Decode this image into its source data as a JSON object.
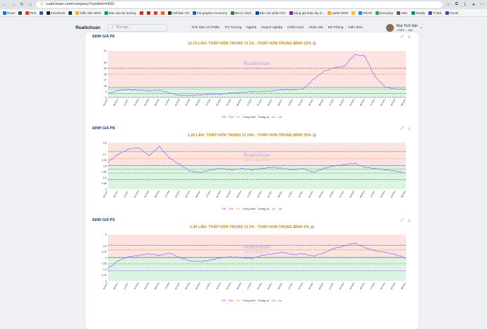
{
  "browser": {
    "url": "ruatichsan.com/company?symbol=HDG",
    "bookmarks": [
      "Read",
      "",
      "Pinh",
      "",
      "Facebook",
      "",
      "Diễn đàn NĐG",
      "Báo vào thị trường",
      "",
      "",
      "",
      "",
      "Vnfinlab VN",
      "VN-graphic-economy",
      "BCCL 2021",
      "Báo vào phân tích",
      "Sáng giá thép rây d...",
      "Jarfet MOS",
      "",
      "PEAN",
      "Everyday",
      "ABC",
      "Simply",
      "TCBS",
      "Travel"
    ]
  },
  "nav": {
    "logo": "Ruatichsan",
    "search_placeholder": "Tìm mã...",
    "menu": [
      "Tích Sản Cổ Phiếu",
      "Thị Trường",
      "Ngành",
      "Doanh nghiệp",
      "Chiến lược",
      "Khảo Sát",
      "Mô Phỏng",
      "Kiến thức"
    ],
    "user_name": "Rùa Tích Sản",
    "badge1": "FREE",
    "badge2": "EA"
  },
  "legend_labels": {
    "series": "PE",
    "p2": "+2σ",
    "p1": "+1σ",
    "avg": "Trung bình",
    "med": "Trung vị",
    "m1": "-1σ",
    "m2": "-2σ"
  },
  "watermark": {
    "main": "Ruatichsan",
    "sub": "Nguồn: ruatichsan.com"
  },
  "colors": {
    "pos2": "#d62728",
    "pos1": "#f08a24",
    "avg": "#444444",
    "med": "#666666",
    "neg1": "#2ca02c",
    "neg2": "#5b4bd6",
    "line": "#8b7cf0",
    "title": "#c98b0c"
  },
  "sections": [
    {
      "title": "ĐỊNH GIÁ PE",
      "headline": "12.72 LẦN: THẤP HƠN TRUNG VỊ 1% - THẤP HƠN TRUNG BÌNH 22%",
      "chart_data": {
        "type": "line",
        "yticks": [
          "0",
          "9",
          "18",
          "27",
          "36",
          "45",
          "54",
          "72"
        ],
        "ylim": [
          0,
          72
        ],
        "bands": {
          "pos2": 45,
          "pos1": 36,
          "avg": 16,
          "med": 13,
          "neg1": 6,
          "neg2": 0
        },
        "xlabels": [
          "05/2017",
          "08/2017",
          "11/2017",
          "02/2018",
          "05/2018",
          "08/2018",
          "11/2018",
          "02/2019",
          "05/2019",
          "08/2019",
          "11/2019",
          "02/2020",
          "05/2020",
          "08/2020",
          "11/2020",
          "02/2021",
          "05/2021",
          "08/2021",
          "11/2021",
          "02/2022",
          "05/2022",
          "08/2022",
          "11/2022",
          "02/2023",
          "05/2023",
          "08/2023",
          "11/2023",
          "02/2024",
          "05/2024",
          "08/2024"
        ],
        "series": [
          {
            "name": "PE",
            "values": [
              6,
              11,
              12,
              11,
              10,
              11,
              7,
              3,
              3,
              4,
              5,
              5,
              7,
              8,
              9,
              9,
              10,
              12,
              12,
              13,
              28,
              40,
              46,
              48,
              66,
              64,
              32,
              16,
              13,
              12.72
            ]
          }
        ]
      }
    },
    {
      "title": "ĐỊNH GIÁ PB",
      "headline": "1.26 LẦN: THẤP HƠN TRUNG VỊ 19% - THẤP HƠN TRUNG BÌNH 30%",
      "chart_data": {
        "type": "line",
        "yticks": [
          "0",
          "0.45",
          "0.9",
          "1.35",
          "1.8",
          "2.25",
          "2.7",
          "3.6"
        ],
        "ylim": [
          0,
          3.6
        ],
        "bands": {
          "pos2": 2.9,
          "pos1": 2.35,
          "avg": 1.82,
          "med": 1.56,
          "neg1": 1.25,
          "neg2": 0.75
        },
        "xlabels": [
          "05/2017",
          "08/2017",
          "11/2017",
          "02/2018",
          "05/2018",
          "08/2018",
          "11/2018",
          "02/2019",
          "05/2019",
          "08/2019",
          "11/2019",
          "02/2020",
          "05/2020",
          "08/2020",
          "11/2020",
          "02/2021",
          "05/2021",
          "08/2021",
          "11/2021",
          "02/2022",
          "05/2022",
          "08/2022",
          "11/2022",
          "02/2023",
          "05/2023",
          "08/2023",
          "11/2023",
          "02/2024",
          "05/2024",
          "08/2024"
        ],
        "series": [
          {
            "name": "PB",
            "values": [
              2.1,
              2.7,
              3.1,
              3.2,
              2.6,
              3.3,
              2.4,
              1.9,
              1.4,
              1.3,
              1.5,
              1.6,
              1.5,
              1.6,
              1.5,
              1.6,
              1.7,
              1.6,
              1.5,
              1.6,
              1.3,
              1.6,
              1.8,
              1.9,
              2.0,
              1.7,
              1.6,
              1.5,
              1.4,
              1.26
            ]
          }
        ]
      }
    },
    {
      "title": "ĐỊNH GIÁ PS",
      "headline": "2.95 LẦN: THẤP HƠN TRUNG VỊ 3% - THẤP HƠN TRUNG BÌNH 2%",
      "chart_data": {
        "type": "line",
        "yticks": [
          "0",
          "0.75",
          "1.5",
          "2.25",
          "3",
          "3.75",
          "4.5",
          "6"
        ],
        "ylim": [
          0,
          6
        ],
        "bands": {
          "pos2": 4.6,
          "pos1": 4.0,
          "avg": 3.05,
          "med": 3.0,
          "neg1": 2.2,
          "neg2": 1.3
        },
        "xlabels": [
          "05/2017",
          "08/2017",
          "11/2017",
          "02/2018",
          "05/2018",
          "08/2018",
          "11/2018",
          "02/2019",
          "05/2019",
          "08/2019",
          "11/2019",
          "02/2020",
          "05/2020",
          "08/2020",
          "11/2020",
          "02/2021",
          "05/2021",
          "08/2021",
          "11/2021",
          "02/2022",
          "05/2022",
          "08/2022",
          "11/2022",
          "02/2023",
          "05/2023",
          "08/2023",
          "11/2023",
          "02/2024",
          "05/2024",
          "08/2024"
        ],
        "series": [
          {
            "name": "PS",
            "values": [
              1.6,
              2.6,
              3.1,
              3.3,
              3.5,
              3.3,
              3.6,
              3.0,
              2.6,
              2.5,
              2.7,
              3.0,
              3.1,
              3.0,
              2.9,
              3.3,
              3.5,
              3.7,
              3.4,
              3.5,
              3.2,
              3.6,
              4.2,
              4.5,
              4.9,
              4.3,
              3.9,
              3.7,
              3.4,
              2.95
            ]
          }
        ]
      }
    }
  ]
}
